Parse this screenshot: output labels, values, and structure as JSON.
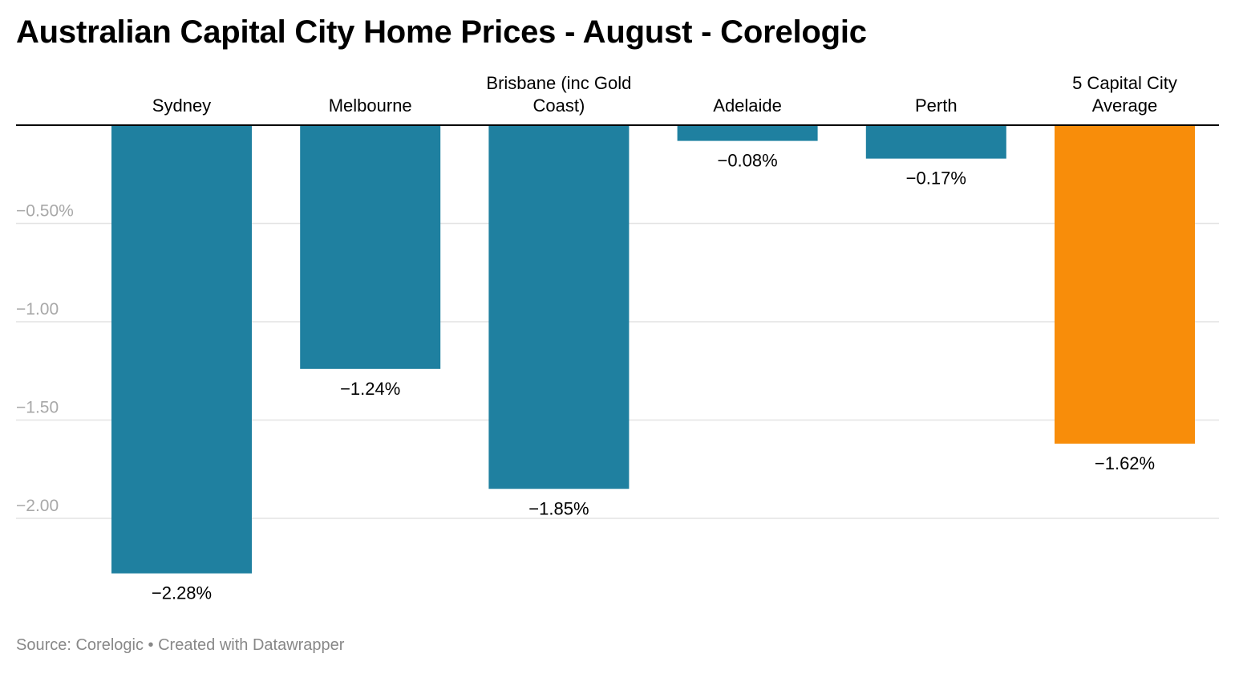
{
  "title": "Australian Capital City Home Prices - August - Corelogic",
  "footer": {
    "source": "Source: Corelogic",
    "separator": "•",
    "credit": "Created with Datawrapper"
  },
  "colors": {
    "bar_default": "#1f80a0",
    "bar_highlight": "#f88d0a",
    "grid": "#e4e4e4",
    "axis": "#000000",
    "tick_label": "#a8a8a8"
  },
  "chart_data": {
    "type": "bar",
    "orientation": "vertical",
    "categories": [
      "Sydney",
      "Melbourne",
      "Brisbane (inc Gold Coast)",
      "Adelaide",
      "Perth",
      "5 Capital City Average"
    ],
    "category_label_lines": [
      [
        "Sydney"
      ],
      [
        "Melbourne"
      ],
      [
        "Brisbane (inc Gold",
        "Coast)"
      ],
      [
        "Adelaide"
      ],
      [
        "Perth"
      ],
      [
        "5 Capital City",
        "Average"
      ]
    ],
    "values": [
      -2.28,
      -1.24,
      -1.85,
      -0.08,
      -0.17,
      -1.62
    ],
    "value_labels": [
      "−2.28%",
      "−1.24%",
      "−1.85%",
      "−0.08%",
      "−0.17%",
      "−1.62%"
    ],
    "highlight_index": 5,
    "y_ticks": [
      -0.5,
      -1.0,
      -1.5,
      -2.0
    ],
    "y_tick_labels": [
      "−0.50%",
      "−1.00",
      "−1.50",
      "−2.00"
    ],
    "ylim": [
      -2.4,
      0
    ],
    "grid": true,
    "category_labels_position": "top",
    "title": "Australian Capital City Home Prices - August - Corelogic",
    "xlabel": "",
    "ylabel": ""
  }
}
